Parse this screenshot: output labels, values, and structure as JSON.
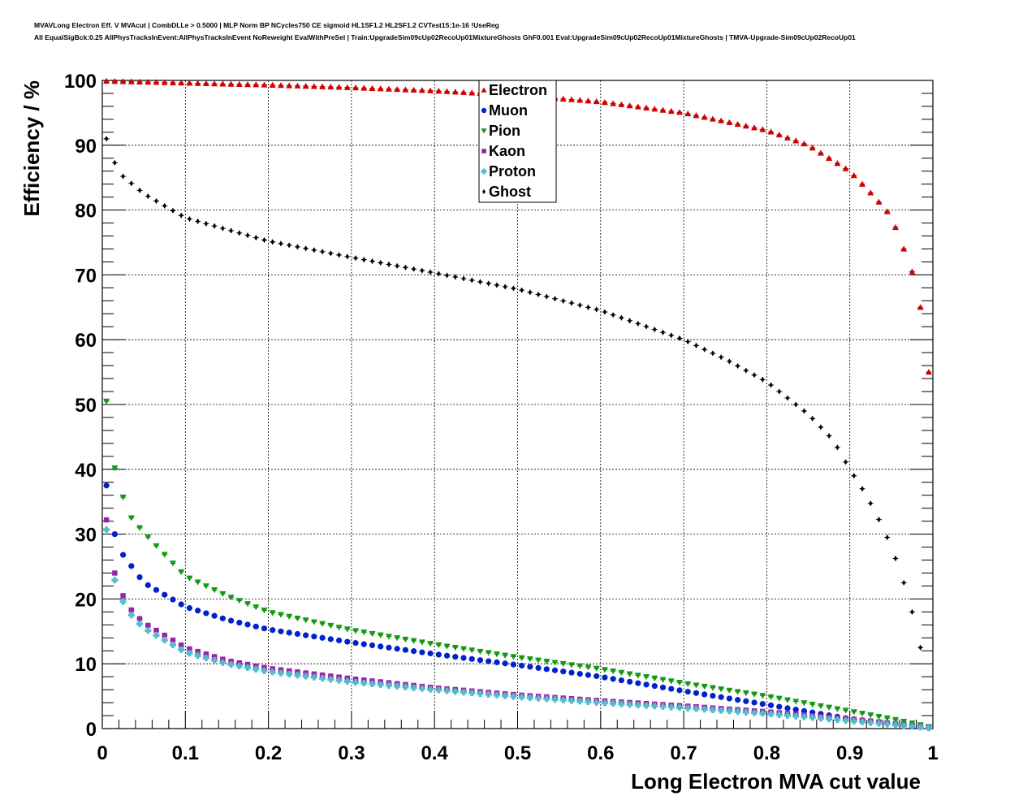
{
  "chart_data": {
    "type": "scatter",
    "title_lines": [
      "MVAVLong Electron Eff. V MVAcut | CombDLLe > 0.5000 | MLP Norm BP NCycles750 CE sigmoid HL1SF1.2 HL2SF1.2 CVTest15:1e-16 !UseReg",
      "All EqualSigBck:0.25 AllPhysTracksInEvent:AllPhysTracksInEvent NoReweight EvalWithPreSel | Train:UpgradeSim09cUp02RecoUp01MixtureGhosts GhF0.001 Eval:UpgradeSim09cUp02RecoUp01MixtureGhosts | TMVA-Upgrade-Sim09cUp02RecoUp01"
    ],
    "xlabel": "Long Electron MVA cut value",
    "ylabel": "Efficiency / %",
    "xlim": [
      0,
      1
    ],
    "ylim": [
      0,
      100
    ],
    "xticks": [
      "0",
      "0.1",
      "0.2",
      "0.3",
      "0.4",
      "0.5",
      "0.6",
      "0.7",
      "0.8",
      "0.9",
      "1"
    ],
    "yticks": [
      "0",
      "10",
      "20",
      "30",
      "40",
      "50",
      "60",
      "70",
      "80",
      "90",
      "100"
    ],
    "grid": true,
    "legend_position": "top-center",
    "x_start": 0.005,
    "x_step": 0.01,
    "n_points": 100,
    "series": [
      {
        "name": "Electron",
        "color": "#cc0000",
        "marker": "triangle-up",
        "anchors": [
          [
            0.005,
            99.9
          ],
          [
            0.1,
            99.6
          ],
          [
            0.2,
            99.3
          ],
          [
            0.3,
            98.9
          ],
          [
            0.4,
            98.4
          ],
          [
            0.5,
            97.7
          ],
          [
            0.6,
            96.7
          ],
          [
            0.7,
            95.0
          ],
          [
            0.8,
            92.3
          ],
          [
            0.85,
            90.0
          ],
          [
            0.9,
            86.0
          ],
          [
            0.93,
            82.0
          ],
          [
            0.95,
            79.0
          ],
          [
            0.965,
            74.0
          ],
          [
            0.975,
            70.5
          ],
          [
            0.985,
            65.0
          ],
          [
            0.995,
            55.0
          ]
        ]
      },
      {
        "name": "Muon",
        "color": "#0022cc",
        "marker": "circle",
        "anchors": [
          [
            0.005,
            37.5
          ],
          [
            0.015,
            30.0
          ],
          [
            0.025,
            26.8
          ],
          [
            0.05,
            22.5
          ],
          [
            0.1,
            18.8
          ],
          [
            0.15,
            16.8
          ],
          [
            0.2,
            15.3
          ],
          [
            0.3,
            13.3
          ],
          [
            0.4,
            11.5
          ],
          [
            0.5,
            9.8
          ],
          [
            0.6,
            8.0
          ],
          [
            0.7,
            5.8
          ],
          [
            0.8,
            3.7
          ],
          [
            0.9,
            1.5
          ],
          [
            0.95,
            0.8
          ],
          [
            0.995,
            0.2
          ]
        ]
      },
      {
        "name": "Pion",
        "color": "#119911",
        "marker": "triangle-down",
        "anchors": [
          [
            0.005,
            50.5
          ],
          [
            0.015,
            40.2
          ],
          [
            0.025,
            35.7
          ],
          [
            0.035,
            32.5
          ],
          [
            0.05,
            30.2
          ],
          [
            0.1,
            23.5
          ],
          [
            0.15,
            20.5
          ],
          [
            0.2,
            18.0
          ],
          [
            0.3,
            15.2
          ],
          [
            0.4,
            13.0
          ],
          [
            0.5,
            11.0
          ],
          [
            0.6,
            9.2
          ],
          [
            0.7,
            7.0
          ],
          [
            0.8,
            5.0
          ],
          [
            0.9,
            2.7
          ],
          [
            0.95,
            1.5
          ],
          [
            0.995,
            0.3
          ]
        ]
      },
      {
        "name": "Kaon",
        "color": "#9922aa",
        "marker": "square",
        "anchors": [
          [
            0.005,
            32.2
          ],
          [
            0.015,
            24.0
          ],
          [
            0.025,
            20.5
          ],
          [
            0.035,
            18.3
          ],
          [
            0.05,
            16.3
          ],
          [
            0.1,
            12.5
          ],
          [
            0.15,
            10.5
          ],
          [
            0.2,
            9.3
          ],
          [
            0.3,
            7.7
          ],
          [
            0.4,
            6.3
          ],
          [
            0.5,
            5.2
          ],
          [
            0.6,
            4.3
          ],
          [
            0.7,
            3.5
          ],
          [
            0.8,
            2.6
          ],
          [
            0.9,
            1.5
          ],
          [
            0.995,
            0.2
          ]
        ]
      },
      {
        "name": "Proton",
        "color": "#55bbcc",
        "marker": "cross",
        "anchors": [
          [
            0.005,
            30.7
          ],
          [
            0.015,
            22.9
          ],
          [
            0.025,
            19.6
          ],
          [
            0.035,
            17.5
          ],
          [
            0.05,
            15.5
          ],
          [
            0.1,
            11.8
          ],
          [
            0.15,
            10.0
          ],
          [
            0.2,
            8.8
          ],
          [
            0.3,
            7.2
          ],
          [
            0.4,
            6.0
          ],
          [
            0.5,
            4.9
          ],
          [
            0.6,
            4.0
          ],
          [
            0.7,
            3.2
          ],
          [
            0.8,
            2.3
          ],
          [
            0.9,
            1.2
          ],
          [
            0.995,
            0.1
          ]
        ]
      },
      {
        "name": "Ghost",
        "color": "#000000",
        "marker": "diamond",
        "anchors": [
          [
            0.005,
            91.0
          ],
          [
            0.015,
            87.3
          ],
          [
            0.025,
            85.2
          ],
          [
            0.05,
            82.5
          ],
          [
            0.1,
            78.8
          ],
          [
            0.2,
            75.2
          ],
          [
            0.3,
            72.7
          ],
          [
            0.4,
            70.3
          ],
          [
            0.5,
            67.8
          ],
          [
            0.6,
            64.5
          ],
          [
            0.7,
            60.0
          ],
          [
            0.75,
            57.0
          ],
          [
            0.8,
            53.5
          ],
          [
            0.85,
            48.5
          ],
          [
            0.88,
            44.5
          ],
          [
            0.9,
            40.0
          ],
          [
            0.92,
            36.0
          ],
          [
            0.93,
            33.5
          ],
          [
            0.94,
            31.0
          ],
          [
            0.95,
            28.0
          ],
          [
            0.96,
            24.5
          ],
          [
            0.97,
            20.5
          ],
          [
            0.98,
            15.5
          ],
          [
            0.99,
            9.5
          ]
        ]
      }
    ]
  }
}
